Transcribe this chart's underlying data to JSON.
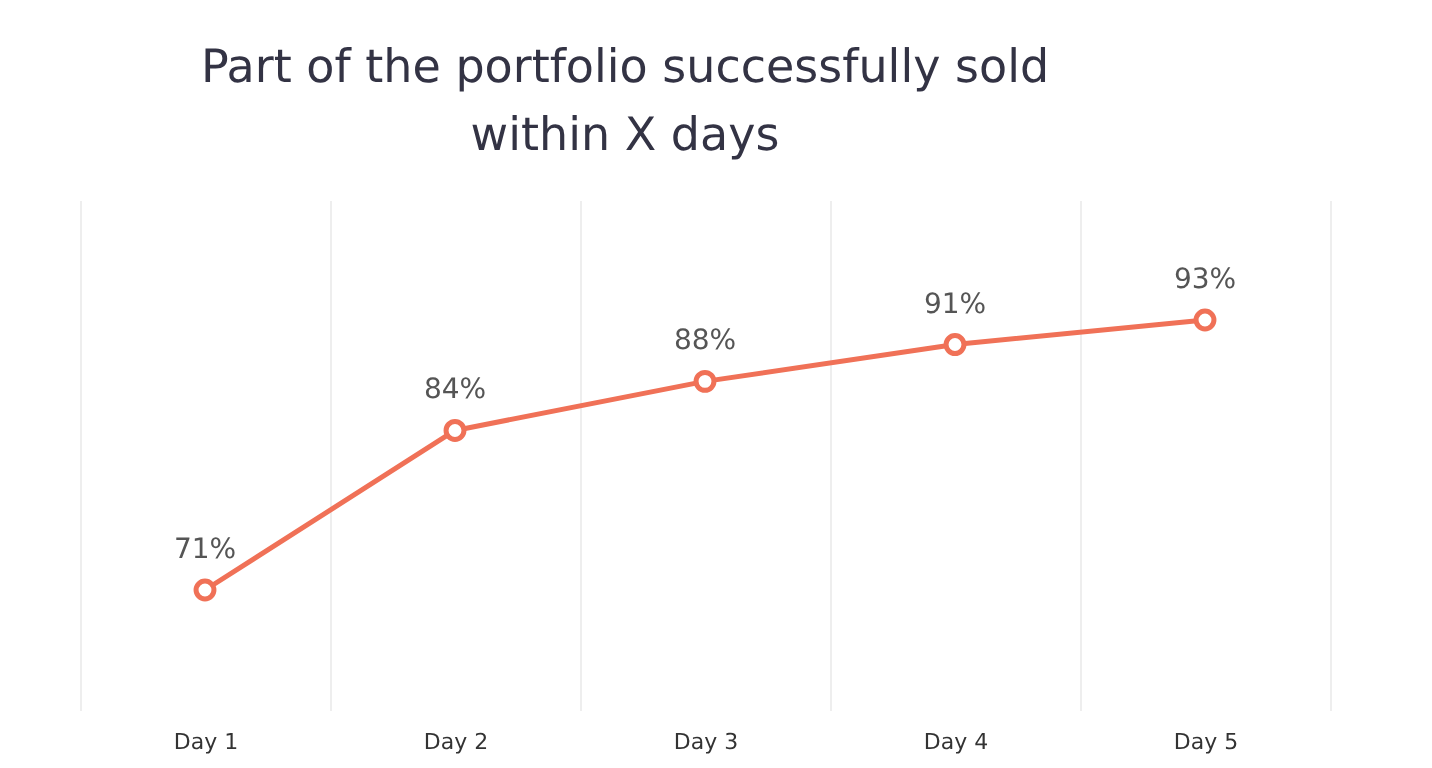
{
  "chart_data": {
    "type": "line",
    "title": "Part of the portfolio successfully sold\nwithin X days",
    "categories": [
      "Day 1",
      "Day 2",
      "Day 3",
      "Day 4",
      "Day 5"
    ],
    "series": [
      {
        "color": "#f07157",
        "values": [
          71,
          84,
          88,
          91,
          93
        ],
        "value_labels": [
          "71%",
          "84%",
          "88%",
          "91%",
          "93%"
        ]
      }
    ],
    "marker": "circle",
    "grid": "x"
  }
}
